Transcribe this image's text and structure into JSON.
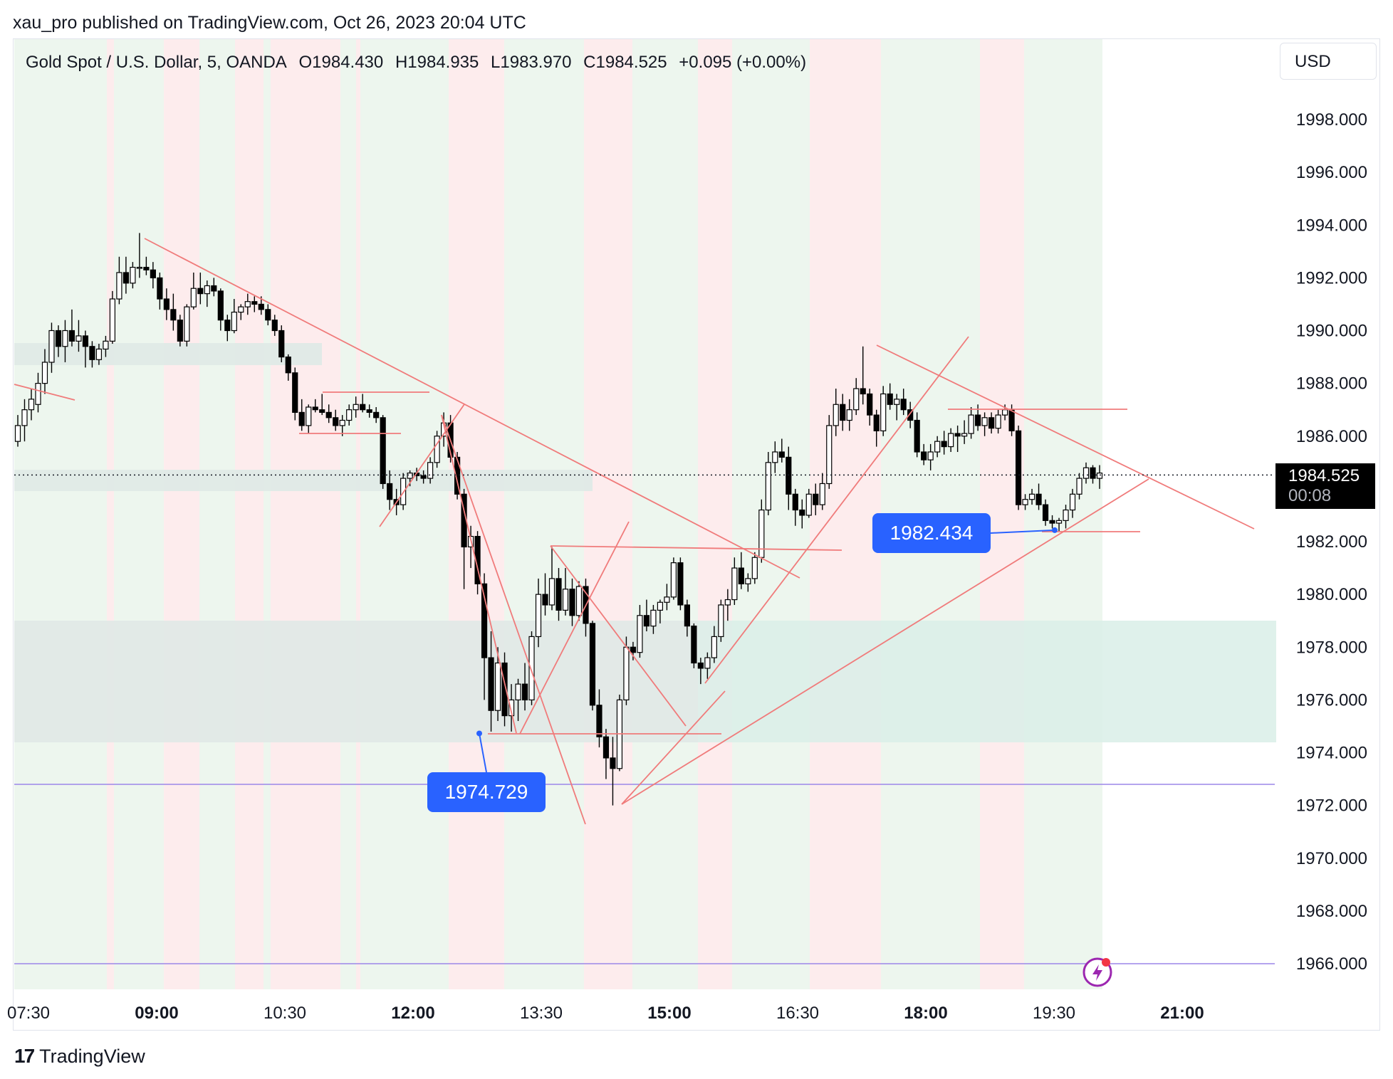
{
  "header": {
    "published": "xau_pro published on TradingView.com, Oct 26, 2023 20:04 UTC"
  },
  "legend": {
    "symbol": "Gold Spot / U.S. Dollar, 5, OANDA",
    "open": "O1984.430",
    "high": "H1984.935",
    "low": "L1983.970",
    "close": "C1984.525",
    "change": "+0.095 (+0.00%)"
  },
  "currency_button": "USD",
  "last_price": {
    "value": "1984.525",
    "countdown": "00:08"
  },
  "callouts": {
    "low_left": "1974.729",
    "low_right": "1982.434"
  },
  "footer": {
    "brand": "TradingView",
    "logo_mark": "17"
  },
  "colors": {
    "bull": "#ffffff",
    "bear": "#000000",
    "wick": "#000000",
    "trendline": "#f07b7b",
    "zone_fill": "#d9efe7",
    "zone_grey": "#e6e6e6",
    "green_band": "#edf6ee",
    "red_band": "#fdeced",
    "hline": "#9b86e8",
    "callout": "#2962ff"
  },
  "chart_data": {
    "type": "candlestick",
    "title": "Gold Spot / U.S. Dollar, 5, OANDA",
    "ylim": [
      1964.0,
      2000.0
    ],
    "yticks": [
      "1998.000",
      "1996.000",
      "1994.000",
      "1992.000",
      "1990.000",
      "1988.000",
      "1986.000",
      "1984.000",
      "1982.000",
      "1980.000",
      "1978.000",
      "1976.000",
      "1974.000",
      "1972.000",
      "1970.000",
      "1968.000",
      "1966.000"
    ],
    "xticks": [
      {
        "label": "07:30",
        "bold": false
      },
      {
        "label": "09:00",
        "bold": true
      },
      {
        "label": "10:30",
        "bold": false
      },
      {
        "label": "12:00",
        "bold": true
      },
      {
        "label": "13:30",
        "bold": false
      },
      {
        "label": "15:00",
        "bold": true
      },
      {
        "label": "16:30",
        "bold": false
      },
      {
        "label": "18:00",
        "bold": true
      },
      {
        "label": "19:30",
        "bold": false
      },
      {
        "label": "21:00",
        "bold": true
      }
    ],
    "grid": false,
    "last_price": 1984.525,
    "horizontal_lines": [
      1972.8,
      1966.0
    ],
    "candles": [
      [
        1985.8,
        1986.8,
        1985.6,
        1986.4
      ],
      [
        1986.4,
        1987.4,
        1985.8,
        1987.0
      ],
      [
        1987.0,
        1987.8,
        1986.6,
        1987.4
      ],
      [
        1987.2,
        1988.4,
        1986.9,
        1988.0
      ],
      [
        1988.0,
        1989.3,
        1987.6,
        1988.8
      ],
      [
        1988.8,
        1990.3,
        1988.4,
        1990.0
      ],
      [
        1990.0,
        1990.2,
        1989.0,
        1989.4
      ],
      [
        1989.4,
        1990.4,
        1988.8,
        1990.0
      ],
      [
        1990.0,
        1990.8,
        1989.4,
        1989.6
      ],
      [
        1989.6,
        1990.4,
        1989.2,
        1989.8
      ],
      [
        1989.8,
        1990.0,
        1988.6,
        1989.4
      ],
      [
        1989.4,
        1989.6,
        1988.6,
        1988.9
      ],
      [
        1988.9,
        1989.5,
        1988.7,
        1989.3
      ],
      [
        1989.3,
        1989.8,
        1989.0,
        1989.6
      ],
      [
        1989.6,
        1991.5,
        1989.5,
        1991.2
      ],
      [
        1991.2,
        1992.8,
        1991.0,
        1992.2
      ],
      [
        1992.2,
        1992.8,
        1991.4,
        1991.8
      ],
      [
        1991.8,
        1992.6,
        1991.6,
        1992.4
      ],
      [
        1992.4,
        1993.7,
        1992.0,
        1992.4
      ],
      [
        1992.4,
        1992.8,
        1992.1,
        1992.3
      ],
      [
        1992.3,
        1992.6,
        1991.6,
        1992.0
      ],
      [
        1992.0,
        1992.2,
        1990.8,
        1991.2
      ],
      [
        1991.2,
        1991.6,
        1990.4,
        1990.8
      ],
      [
        1990.8,
        1991.4,
        1990.0,
        1990.4
      ],
      [
        1990.4,
        1990.6,
        1989.4,
        1989.6
      ],
      [
        1989.6,
        1991.0,
        1989.4,
        1990.9
      ],
      [
        1990.9,
        1992.2,
        1990.8,
        1991.6
      ],
      [
        1991.6,
        1992.2,
        1991.0,
        1991.4
      ],
      [
        1991.4,
        1991.9,
        1990.9,
        1991.7
      ],
      [
        1991.7,
        1992.0,
        1991.3,
        1991.5
      ],
      [
        1991.5,
        1991.6,
        1990.0,
        1990.4
      ],
      [
        1990.4,
        1990.6,
        1989.6,
        1990.0
      ],
      [
        1990.0,
        1991.2,
        1989.9,
        1990.7
      ],
      [
        1990.7,
        1991.0,
        1990.4,
        1990.9
      ],
      [
        1990.9,
        1991.4,
        1990.6,
        1991.1
      ],
      [
        1991.1,
        1991.3,
        1990.7,
        1991.0
      ],
      [
        1991.0,
        1991.3,
        1990.6,
        1990.8
      ],
      [
        1990.8,
        1991.0,
        1990.2,
        1990.4
      ],
      [
        1990.4,
        1990.6,
        1989.8,
        1990.0
      ],
      [
        1990.0,
        1990.2,
        1988.8,
        1989.0
      ],
      [
        1989.0,
        1989.1,
        1988.1,
        1988.4
      ],
      [
        1988.4,
        1988.6,
        1986.6,
        1986.9
      ],
      [
        1986.9,
        1987.4,
        1986.2,
        1986.4
      ],
      [
        1986.4,
        1987.2,
        1986.1,
        1987.1
      ],
      [
        1987.1,
        1987.4,
        1986.9,
        1987.0
      ],
      [
        1987.0,
        1987.6,
        1986.8,
        1986.9
      ],
      [
        1986.9,
        1987.2,
        1986.5,
        1986.7
      ],
      [
        1986.7,
        1987.0,
        1986.2,
        1986.4
      ],
      [
        1986.4,
        1986.8,
        1986.0,
        1986.6
      ],
      [
        1986.6,
        1987.2,
        1986.4,
        1987.0
      ],
      [
        1987.0,
        1987.5,
        1986.7,
        1987.2
      ],
      [
        1987.2,
        1987.6,
        1986.9,
        1987.0
      ],
      [
        1987.0,
        1987.2,
        1986.7,
        1986.9
      ],
      [
        1986.9,
        1987.1,
        1986.5,
        1986.7
      ],
      [
        1986.7,
        1986.8,
        1984.0,
        1984.2
      ],
      [
        1984.2,
        1984.7,
        1983.2,
        1983.6
      ],
      [
        1983.6,
        1984.0,
        1983.0,
        1983.4
      ],
      [
        1983.4,
        1984.6,
        1983.2,
        1984.4
      ],
      [
        1984.4,
        1984.7,
        1984.1,
        1984.6
      ],
      [
        1984.6,
        1984.8,
        1984.3,
        1984.5
      ],
      [
        1984.5,
        1984.7,
        1984.2,
        1984.4
      ],
      [
        1984.4,
        1985.2,
        1984.2,
        1985.0
      ],
      [
        1985.0,
        1986.2,
        1984.8,
        1986.0
      ],
      [
        1986.0,
        1986.9,
        1985.6,
        1986.5
      ],
      [
        1986.5,
        1986.8,
        1985.0,
        1985.2
      ],
      [
        1985.2,
        1985.4,
        1983.6,
        1983.8
      ],
      [
        1983.8,
        1984.0,
        1980.2,
        1981.8
      ],
      [
        1981.8,
        1982.6,
        1981.0,
        1982.2
      ],
      [
        1982.2,
        1982.4,
        1980.0,
        1980.4
      ],
      [
        1980.4,
        1980.8,
        1976.0,
        1977.6
      ],
      [
        1977.6,
        1978.6,
        1974.8,
        1975.6
      ],
      [
        1975.6,
        1978.0,
        1975.2,
        1977.4
      ],
      [
        1977.4,
        1977.8,
        1975.0,
        1975.4
      ],
      [
        1975.4,
        1976.6,
        1974.8,
        1976.0
      ],
      [
        1976.0,
        1976.8,
        1975.2,
        1976.6
      ],
      [
        1976.6,
        1977.4,
        1975.6,
        1976.0
      ],
      [
        1976.0,
        1978.6,
        1975.8,
        1978.4
      ],
      [
        1978.4,
        1980.6,
        1978.0,
        1980.0
      ],
      [
        1980.0,
        1980.8,
        1979.2,
        1979.6
      ],
      [
        1979.6,
        1981.8,
        1979.4,
        1980.6
      ],
      [
        1980.6,
        1981.0,
        1979.0,
        1979.4
      ],
      [
        1979.4,
        1981.0,
        1979.2,
        1980.2
      ],
      [
        1980.2,
        1980.6,
        1978.8,
        1979.2
      ],
      [
        1979.2,
        1980.5,
        1979.0,
        1980.3
      ],
      [
        1980.3,
        1980.6,
        1978.4,
        1978.9
      ],
      [
        1978.9,
        1979.0,
        1975.6,
        1975.8
      ],
      [
        1975.8,
        1976.4,
        1974.2,
        1974.6
      ],
      [
        1974.6,
        1974.9,
        1973.0,
        1973.8
      ],
      [
        1973.8,
        1974.6,
        1972.0,
        1973.4
      ],
      [
        1973.4,
        1976.2,
        1973.3,
        1976.0
      ],
      [
        1976.0,
        1978.4,
        1975.8,
        1978.0
      ],
      [
        1978.0,
        1978.2,
        1977.5,
        1977.8
      ],
      [
        1977.8,
        1979.6,
        1977.6,
        1979.2
      ],
      [
        1979.2,
        1979.8,
        1978.6,
        1978.8
      ],
      [
        1978.8,
        1979.6,
        1978.5,
        1979.4
      ],
      [
        1979.4,
        1979.8,
        1978.9,
        1979.7
      ],
      [
        1979.7,
        1980.4,
        1979.4,
        1979.9
      ],
      [
        1979.9,
        1981.4,
        1979.8,
        1981.2
      ],
      [
        1981.2,
        1981.4,
        1979.4,
        1979.6
      ],
      [
        1979.6,
        1979.8,
        1978.4,
        1978.8
      ],
      [
        1978.8,
        1978.9,
        1977.2,
        1977.4
      ],
      [
        1977.4,
        1977.6,
        1976.6,
        1977.2
      ],
      [
        1977.2,
        1977.8,
        1976.8,
        1977.6
      ],
      [
        1977.6,
        1978.8,
        1977.4,
        1978.4
      ],
      [
        1978.4,
        1979.8,
        1978.2,
        1979.6
      ],
      [
        1979.6,
        1980.2,
        1979.0,
        1979.8
      ],
      [
        1979.8,
        1981.4,
        1979.6,
        1981.0
      ],
      [
        1981.0,
        1981.6,
        1980.2,
        1980.4
      ],
      [
        1980.4,
        1980.8,
        1980.1,
        1980.6
      ],
      [
        1980.6,
        1981.6,
        1980.4,
        1981.4
      ],
      [
        1981.4,
        1983.6,
        1981.2,
        1983.2
      ],
      [
        1983.2,
        1985.4,
        1983.0,
        1985.0
      ],
      [
        1985.0,
        1985.8,
        1984.6,
        1985.4
      ],
      [
        1985.4,
        1985.9,
        1985.0,
        1985.2
      ],
      [
        1985.2,
        1985.6,
        1983.2,
        1983.8
      ],
      [
        1983.8,
        1984.0,
        1982.6,
        1983.2
      ],
      [
        1983.2,
        1983.6,
        1982.5,
        1983.0
      ],
      [
        1983.0,
        1984.0,
        1982.9,
        1983.8
      ],
      [
        1983.8,
        1984.2,
        1983.0,
        1983.4
      ],
      [
        1983.4,
        1984.6,
        1983.2,
        1984.2
      ],
      [
        1984.2,
        1986.8,
        1984.0,
        1986.4
      ],
      [
        1986.4,
        1987.8,
        1986.0,
        1987.2
      ],
      [
        1987.2,
        1987.6,
        1986.2,
        1986.6
      ],
      [
        1986.6,
        1987.4,
        1986.2,
        1987.0
      ],
      [
        1987.0,
        1988.2,
        1986.8,
        1987.8
      ],
      [
        1987.8,
        1989.4,
        1987.2,
        1987.6
      ],
      [
        1987.6,
        1987.8,
        1986.4,
        1986.8
      ],
      [
        1986.8,
        1987.0,
        1985.6,
        1986.2
      ],
      [
        1986.2,
        1987.9,
        1986.0,
        1987.6
      ],
      [
        1987.6,
        1988.0,
        1987.0,
        1987.2
      ],
      [
        1987.2,
        1987.6,
        1986.6,
        1987.4
      ],
      [
        1987.4,
        1987.8,
        1986.8,
        1987.0
      ],
      [
        1987.0,
        1987.3,
        1986.3,
        1986.6
      ],
      [
        1986.6,
        1986.9,
        1985.2,
        1985.4
      ],
      [
        1985.4,
        1985.7,
        1984.9,
        1985.1
      ],
      [
        1985.1,
        1985.7,
        1984.7,
        1985.4
      ],
      [
        1985.4,
        1986.0,
        1985.2,
        1985.8
      ],
      [
        1985.8,
        1986.2,
        1985.3,
        1985.6
      ],
      [
        1985.6,
        1986.3,
        1985.4,
        1986.1
      ],
      [
        1986.1,
        1986.4,
        1985.4,
        1986.0
      ],
      [
        1986.0,
        1986.6,
        1985.7,
        1986.1
      ],
      [
        1986.1,
        1987.1,
        1985.9,
        1986.8
      ],
      [
        1986.8,
        1987.2,
        1986.2,
        1986.4
      ],
      [
        1986.4,
        1986.9,
        1986.0,
        1986.7
      ],
      [
        1986.7,
        1986.9,
        1986.1,
        1986.3
      ],
      [
        1986.3,
        1987.0,
        1986.1,
        1986.8
      ],
      [
        1986.8,
        1987.2,
        1986.6,
        1987.0
      ],
      [
        1987.0,
        1987.2,
        1986.0,
        1986.2
      ],
      [
        1986.2,
        1986.4,
        1983.2,
        1983.4
      ],
      [
        1983.4,
        1983.8,
        1983.2,
        1983.6
      ],
      [
        1983.6,
        1984.0,
        1983.4,
        1983.8
      ],
      [
        1983.8,
        1984.2,
        1983.2,
        1983.4
      ],
      [
        1983.4,
        1983.6,
        1982.6,
        1982.8
      ],
      [
        1982.8,
        1983.0,
        1982.5,
        1982.7
      ],
      [
        1982.7,
        1982.9,
        1982.4,
        1982.8
      ],
      [
        1982.8,
        1983.4,
        1982.5,
        1983.2
      ],
      [
        1983.2,
        1984.0,
        1982.9,
        1983.8
      ],
      [
        1983.8,
        1984.6,
        1983.6,
        1984.4
      ],
      [
        1984.4,
        1985.0,
        1984.2,
        1984.8
      ],
      [
        1984.8,
        1984.9,
        1984.2,
        1984.4
      ],
      [
        1984.4,
        1984.9,
        1984.0,
        1984.6
      ]
    ],
    "annotations": [
      "1974.729",
      "1982.434"
    ]
  }
}
